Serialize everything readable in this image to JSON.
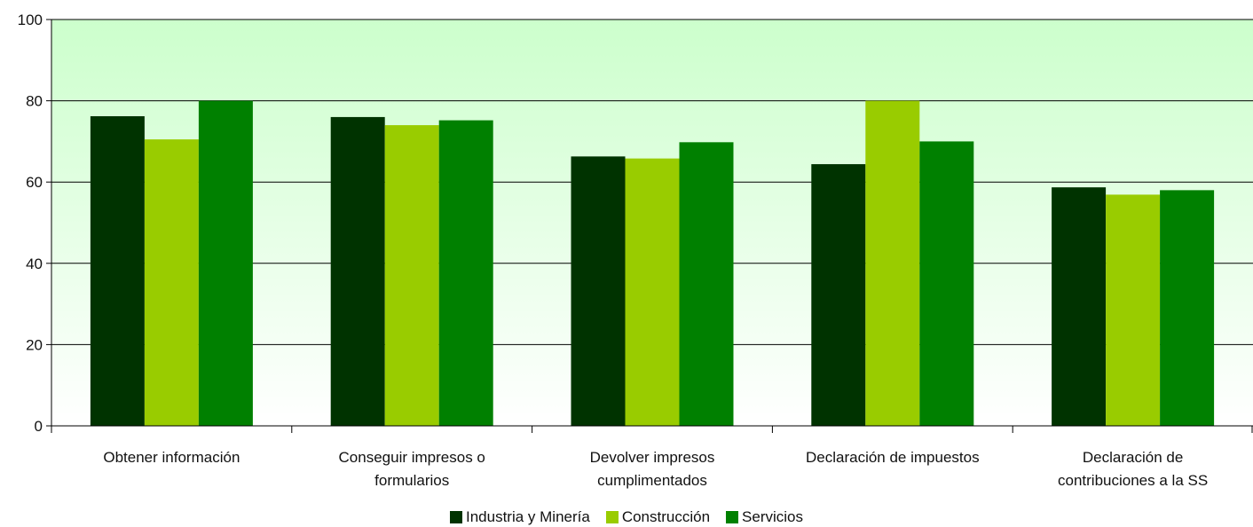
{
  "chart_data": {
    "type": "bar",
    "categories": [
      [
        "Obtener información"
      ],
      [
        "Conseguir impresos o",
        "formularios"
      ],
      [
        "Devolver impresos",
        "cumplimentados"
      ],
      [
        "Declaración de impuestos"
      ],
      [
        "Declaración de",
        "contribuciones a la SS"
      ]
    ],
    "series": [
      {
        "name": "Industria y Minería",
        "color": "#003300",
        "values": [
          76.2,
          76.0,
          66.3,
          64.4,
          58.7
        ]
      },
      {
        "name": "Construcción",
        "color": "#99CC00",
        "values": [
          70.5,
          74.0,
          65.8,
          80.0,
          56.9
        ]
      },
      {
        "name": "Servicios",
        "color": "#008000",
        "values": [
          80.0,
          75.2,
          69.8,
          70.0,
          58.0
        ]
      }
    ],
    "ylim": [
      0,
      100
    ],
    "yticks": [
      0,
      20,
      40,
      60,
      80,
      100
    ],
    "grid": true,
    "legend_position": "bottom",
    "background_gradient": [
      "#CCFFCC",
      "#FFFFFF"
    ]
  }
}
